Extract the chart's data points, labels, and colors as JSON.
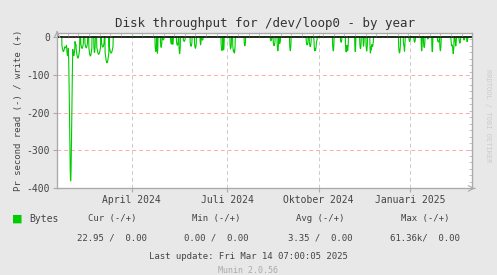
{
  "title": "Disk throughput for /dev/loop0 - by year",
  "ylabel": "Pr second read (-) / write (+)",
  "bg_color": "#e8e8e8",
  "plot_bg_color": "#ffffff",
  "grid_h_color": "#ffaaaa",
  "grid_v_color": "#cccccc",
  "line_color": "#00cc00",
  "border_color": "#aaaaaa",
  "dark_line_color": "#111111",
  "ylim": [
    -400,
    10
  ],
  "yticks": [
    0,
    -100,
    -200,
    -300,
    -400
  ],
  "ytick_labels": [
    "0",
    "-100",
    "-200",
    "-300",
    "-400"
  ],
  "xlabel_ticks": [
    "April 2024",
    "Juli 2024",
    "Oktober 2024",
    "Januari 2025"
  ],
  "xlabel_tick_positions": [
    0.18,
    0.41,
    0.63,
    0.85
  ],
  "last_update": "Last update: Fri Mar 14 07:00:05 2025",
  "munin_version": "Munin 2.0.56",
  "legend_color": "#00cc00",
  "legend_label": "Bytes",
  "watermark": "RRDTOOL / TOBI OETIKER",
  "cur_label": "Cur (-/+)",
  "min_label": "Min (-/+)",
  "avg_label": "Avg (-/+)",
  "max_label": "Max (-/+)",
  "cur_val": "22.95 /  0.00",
  "min_val": "0.00 /  0.00",
  "avg_val": "3.35 /  0.00",
  "max_val": "61.36k/  0.00"
}
